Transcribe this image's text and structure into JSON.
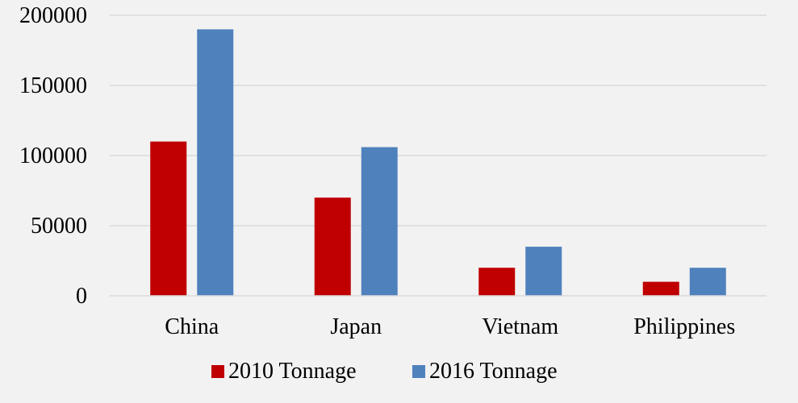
{
  "chart_data": {
    "type": "bar",
    "title": "",
    "xlabel": "",
    "ylabel": "",
    "categories": [
      "China",
      "Japan",
      "Vietnam",
      "Philippines"
    ],
    "series": [
      {
        "name": "2010 Tonnage",
        "color": "#c00000",
        "values": [
          110000,
          70000,
          20000,
          10000
        ]
      },
      {
        "name": "2016 Tonnage",
        "color": "#4f81bd",
        "values": [
          190000,
          106000,
          35000,
          20000
        ]
      }
    ],
    "ylim": [
      0,
      200000
    ],
    "yticks": [
      0,
      50000,
      100000,
      150000,
      200000
    ],
    "ytick_labels": [
      "0",
      "50000",
      "100000",
      "150000",
      "200000"
    ],
    "grid": true,
    "legend_position": "bottom"
  }
}
